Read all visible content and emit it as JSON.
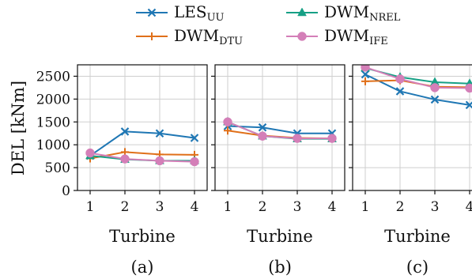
{
  "chart_data": [
    {
      "type": "line",
      "caption": "(a)",
      "xlabel": "Turbine",
      "ylabel": "DEL [kNm]",
      "x": [
        1,
        2,
        3,
        4
      ],
      "xticks": [
        "1",
        "2",
        "3",
        "4"
      ],
      "yticks": [
        "0",
        "500",
        "1000",
        "1500",
        "2000",
        "2500"
      ],
      "ylim": [
        0,
        2750
      ],
      "grid": true,
      "series": [
        {
          "name": "LES_UU",
          "values": [
            760,
            1290,
            1250,
            1150
          ]
        },
        {
          "name": "DWM_DTU",
          "values": [
            700,
            840,
            790,
            780
          ]
        },
        {
          "name": "DWM_NREL",
          "values": [
            760,
            680,
            650,
            650
          ]
        },
        {
          "name": "DWM_IFE",
          "values": [
            820,
            690,
            650,
            630
          ]
        }
      ]
    },
    {
      "type": "line",
      "caption": "(b)",
      "xlabel": "Turbine",
      "x": [
        1,
        2,
        3,
        4
      ],
      "xticks": [
        "1",
        "2",
        "3",
        "4"
      ],
      "ylim": [
        0,
        2750
      ],
      "grid": true,
      "series": [
        {
          "name": "LES_UU",
          "values": [
            1410,
            1380,
            1250,
            1250
          ]
        },
        {
          "name": "DWM_DTU",
          "values": [
            1310,
            1200,
            1150,
            1140
          ]
        },
        {
          "name": "DWM_NREL",
          "values": [
            1500,
            1190,
            1130,
            1130
          ]
        },
        {
          "name": "DWM_IFE",
          "values": [
            1500,
            1190,
            1140,
            1140
          ]
        }
      ]
    },
    {
      "type": "line",
      "caption": "(c)",
      "xlabel": "Turbine",
      "x": [
        1,
        2,
        3,
        4
      ],
      "xticks": [
        "1",
        "2",
        "3",
        "4"
      ],
      "ylim": [
        0,
        2750
      ],
      "grid": true,
      "series": [
        {
          "name": "LES_UU",
          "values": [
            2540,
            2170,
            1990,
            1870
          ]
        },
        {
          "name": "DWM_DTU",
          "values": [
            2390,
            2410,
            2270,
            2260
          ]
        },
        {
          "name": "DWM_NREL",
          "values": [
            2680,
            2480,
            2370,
            2340
          ]
        },
        {
          "name": "DWM_IFE",
          "values": [
            2700,
            2440,
            2250,
            2240
          ]
        }
      ]
    }
  ],
  "legend": [
    {
      "base": "LES",
      "sub": "UU",
      "color": "#1f77b4",
      "marker": "x"
    },
    {
      "base": "DWM",
      "sub": "DTU",
      "color": "#e0701a",
      "marker": "plus"
    },
    {
      "base": "DWM",
      "sub": "NREL",
      "color": "#16a085",
      "marker": "triangle"
    },
    {
      "base": "DWM",
      "sub": "IFE",
      "color": "#d47fb8",
      "marker": "circle"
    }
  ]
}
